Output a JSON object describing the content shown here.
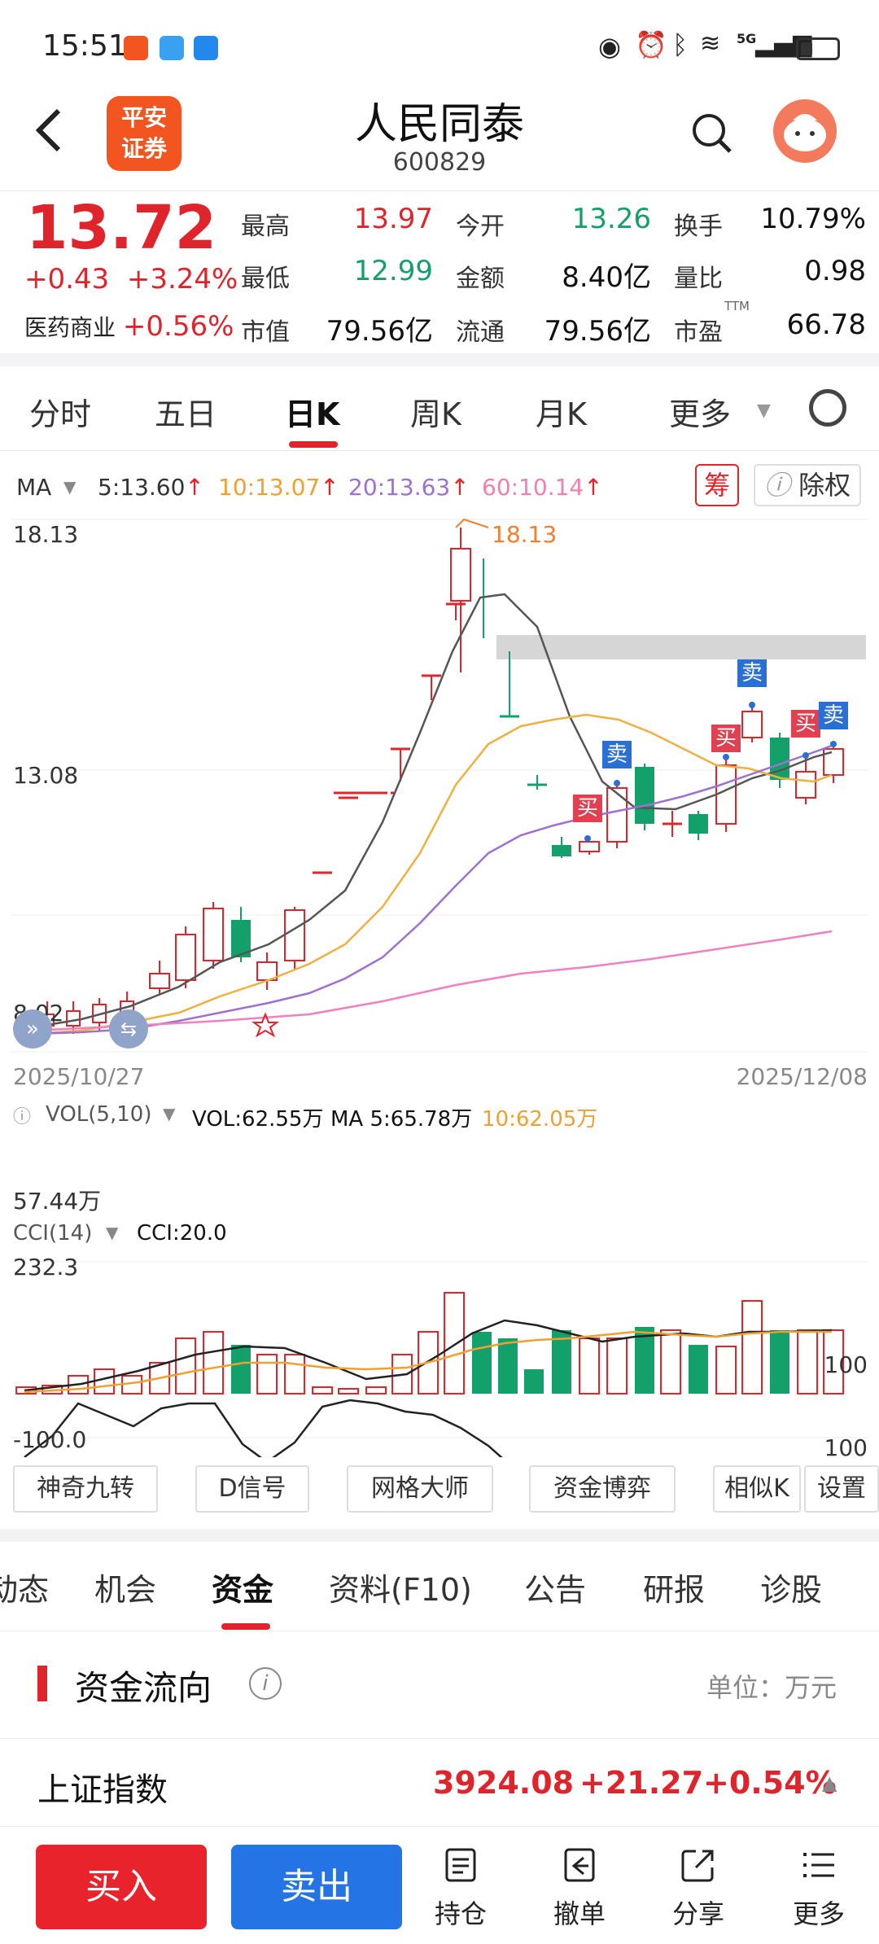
{
  "status": {
    "time": "15:51",
    "network": "5G"
  },
  "header": {
    "back_icon": "chevron-left-icon",
    "brand": "平安证券",
    "title": "人民同泰",
    "code": "600829",
    "search_icon": "search-icon"
  },
  "quote": {
    "price": "13.72",
    "change": "+0.43",
    "change_pct": "+3.24%",
    "sector_name": "医药商业",
    "sector_pct": "+0.56%",
    "fields": [
      {
        "label": "最高",
        "value": "13.97",
        "color": "red"
      },
      {
        "label": "今开",
        "value": "13.26",
        "color": "green"
      },
      {
        "label": "换手",
        "value": "10.79%",
        "color": "dark"
      },
      {
        "label": "最低",
        "value": "12.99",
        "color": "green"
      },
      {
        "label": "金额",
        "value": "8.40亿",
        "color": "dark"
      },
      {
        "label": "量比",
        "value": "0.98",
        "color": "dark"
      },
      {
        "label": "市值",
        "value": "79.56亿",
        "color": "dark"
      },
      {
        "label": "流通",
        "value": "79.56亿",
        "color": "dark"
      },
      {
        "label": "市盈",
        "value": "66.78",
        "color": "dark",
        "sup": "TTM"
      }
    ]
  },
  "tabs": [
    "分时",
    "五日",
    "日K",
    "周K",
    "月K",
    "更多"
  ],
  "ma": {
    "label": "MA",
    "items": [
      {
        "text": "5:13.60",
        "arrow": "↑",
        "color": "#333333"
      },
      {
        "text": "10:13.07",
        "arrow": "↑",
        "color": "#f0a030"
      },
      {
        "text": "20:13.63",
        "arrow": "↑",
        "color": "#a070d0"
      },
      {
        "text": "60:10.14",
        "arrow": "↑",
        "color": "#f080b0"
      }
    ],
    "chip_btn": "筹",
    "fq_btn": "除权"
  },
  "chart_data": {
    "type": "candlestick",
    "y_high_label": "18.13",
    "y_mid_label": "13.08",
    "y_low_label": "8.02",
    "peak_label": "18.13",
    "date_start": "2025/10/27",
    "date_end": "2025/12/08",
    "markers": [
      {
        "text": "买",
        "type": "buy"
      },
      {
        "text": "卖",
        "type": "sell"
      },
      {
        "text": "买",
        "type": "buy"
      },
      {
        "text": "卖",
        "type": "sell"
      },
      {
        "text": "买",
        "type": "buy"
      },
      {
        "text": "卖",
        "type": "sell"
      }
    ],
    "volume": {
      "label": "VOL(5,10)",
      "vol": "VOL:62.55万",
      "ma5": "MA 5:65.78万",
      "ma10": "10:62.05万",
      "axis_label": "57.44万"
    },
    "cci": {
      "label": "CCI(14)",
      "value": "CCI:20.0",
      "top": "232.3",
      "bottom": "-100.0",
      "right_100": "100",
      "right_100b": "100"
    }
  },
  "tools": [
    "神奇九转",
    "D信号",
    "网格大师",
    "资金博弈",
    "相似K",
    "设置"
  ],
  "sub_tabs": [
    "动态",
    "机会",
    "资金",
    "资料(F10)",
    "公告",
    "研报",
    "诊股"
  ],
  "flow": {
    "title": "资金流向",
    "unit": "单位：万元"
  },
  "index": {
    "name": "上证指数",
    "value": "3924.08",
    "change": "+21.27",
    "pct": "+0.54%"
  },
  "bottom": {
    "buy": "买入",
    "sell": "卖出",
    "items": [
      {
        "label": "持仓",
        "icon": "holdings-icon"
      },
      {
        "label": "撤单",
        "icon": "cancel-order-icon"
      },
      {
        "label": "分享",
        "icon": "share-icon"
      },
      {
        "label": "更多",
        "icon": "more-icon"
      }
    ]
  }
}
